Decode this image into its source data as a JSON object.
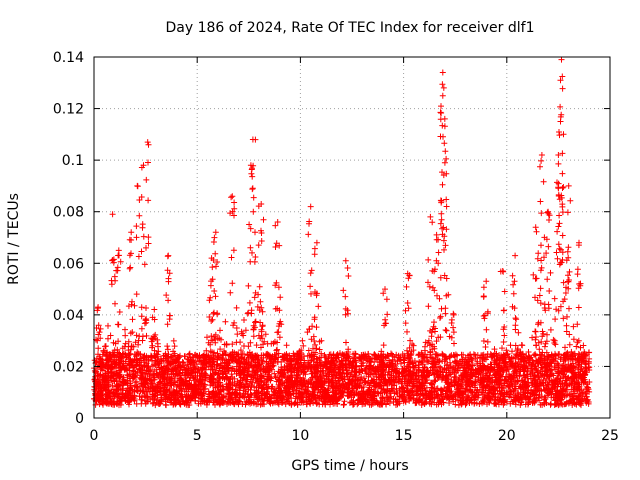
{
  "chart_data": {
    "type": "scatter",
    "title": "Day 186 of 2024, Rate Of TEC Index for receiver dlf1",
    "xlabel": "GPS time / hours",
    "ylabel": "ROTI / TECUs",
    "xlim": [
      0,
      25
    ],
    "ylim": [
      0,
      0.14
    ],
    "xticks": [
      0,
      5,
      10,
      15,
      20,
      25
    ],
    "xtick_labels": [
      "0",
      "5",
      "10",
      "15",
      "20",
      "25"
    ],
    "yticks": [
      0,
      0.02,
      0.04,
      0.06,
      0.08,
      0.1,
      0.12,
      0.14
    ],
    "ytick_labels": [
      "0",
      "0.02",
      "0.04",
      "0.06",
      "0.08",
      "0.1",
      "0.12",
      "0.14"
    ],
    "grid": true,
    "marker": "+",
    "series": [
      {
        "name": "ROTI",
        "color": "#ff0000",
        "x_range": [
          0,
          24
        ],
        "baseline_range": [
          0.005,
          0.025
        ],
        "spikes": [
          {
            "x": 0.2,
            "y": 0.043
          },
          {
            "x": 0.9,
            "y": 0.079
          },
          {
            "x": 1.2,
            "y": 0.065
          },
          {
            "x": 1.8,
            "y": 0.072
          },
          {
            "x": 2.1,
            "y": 0.09
          },
          {
            "x": 2.4,
            "y": 0.098
          },
          {
            "x": 2.6,
            "y": 0.107
          },
          {
            "x": 3.6,
            "y": 0.063
          },
          {
            "x": 5.7,
            "y": 0.062
          },
          {
            "x": 5.9,
            "y": 0.072
          },
          {
            "x": 6.7,
            "y": 0.086
          },
          {
            "x": 7.6,
            "y": 0.098
          },
          {
            "x": 7.7,
            "y": 0.108
          },
          {
            "x": 8.1,
            "y": 0.083
          },
          {
            "x": 8.9,
            "y": 0.076
          },
          {
            "x": 10.5,
            "y": 0.082
          },
          {
            "x": 10.8,
            "y": 0.068
          },
          {
            "x": 12.2,
            "y": 0.061
          },
          {
            "x": 14.1,
            "y": 0.05
          },
          {
            "x": 15.2,
            "y": 0.056
          },
          {
            "x": 16.3,
            "y": 0.078
          },
          {
            "x": 16.6,
            "y": 0.071
          },
          {
            "x": 16.9,
            "y": 0.134
          },
          {
            "x": 16.95,
            "y": 0.128
          },
          {
            "x": 16.9,
            "y": 0.125
          },
          {
            "x": 17.0,
            "y": 0.099
          },
          {
            "x": 19.0,
            "y": 0.053
          },
          {
            "x": 19.8,
            "y": 0.057
          },
          {
            "x": 20.4,
            "y": 0.063
          },
          {
            "x": 21.4,
            "y": 0.074
          },
          {
            "x": 21.7,
            "y": 0.102
          },
          {
            "x": 22.0,
            "y": 0.08
          },
          {
            "x": 22.5,
            "y": 0.102
          },
          {
            "x": 22.6,
            "y": 0.115
          },
          {
            "x": 22.6,
            "y": 0.131
          },
          {
            "x": 22.65,
            "y": 0.139
          },
          {
            "x": 23.0,
            "y": 0.09
          },
          {
            "x": 23.5,
            "y": 0.068
          }
        ]
      }
    ]
  }
}
